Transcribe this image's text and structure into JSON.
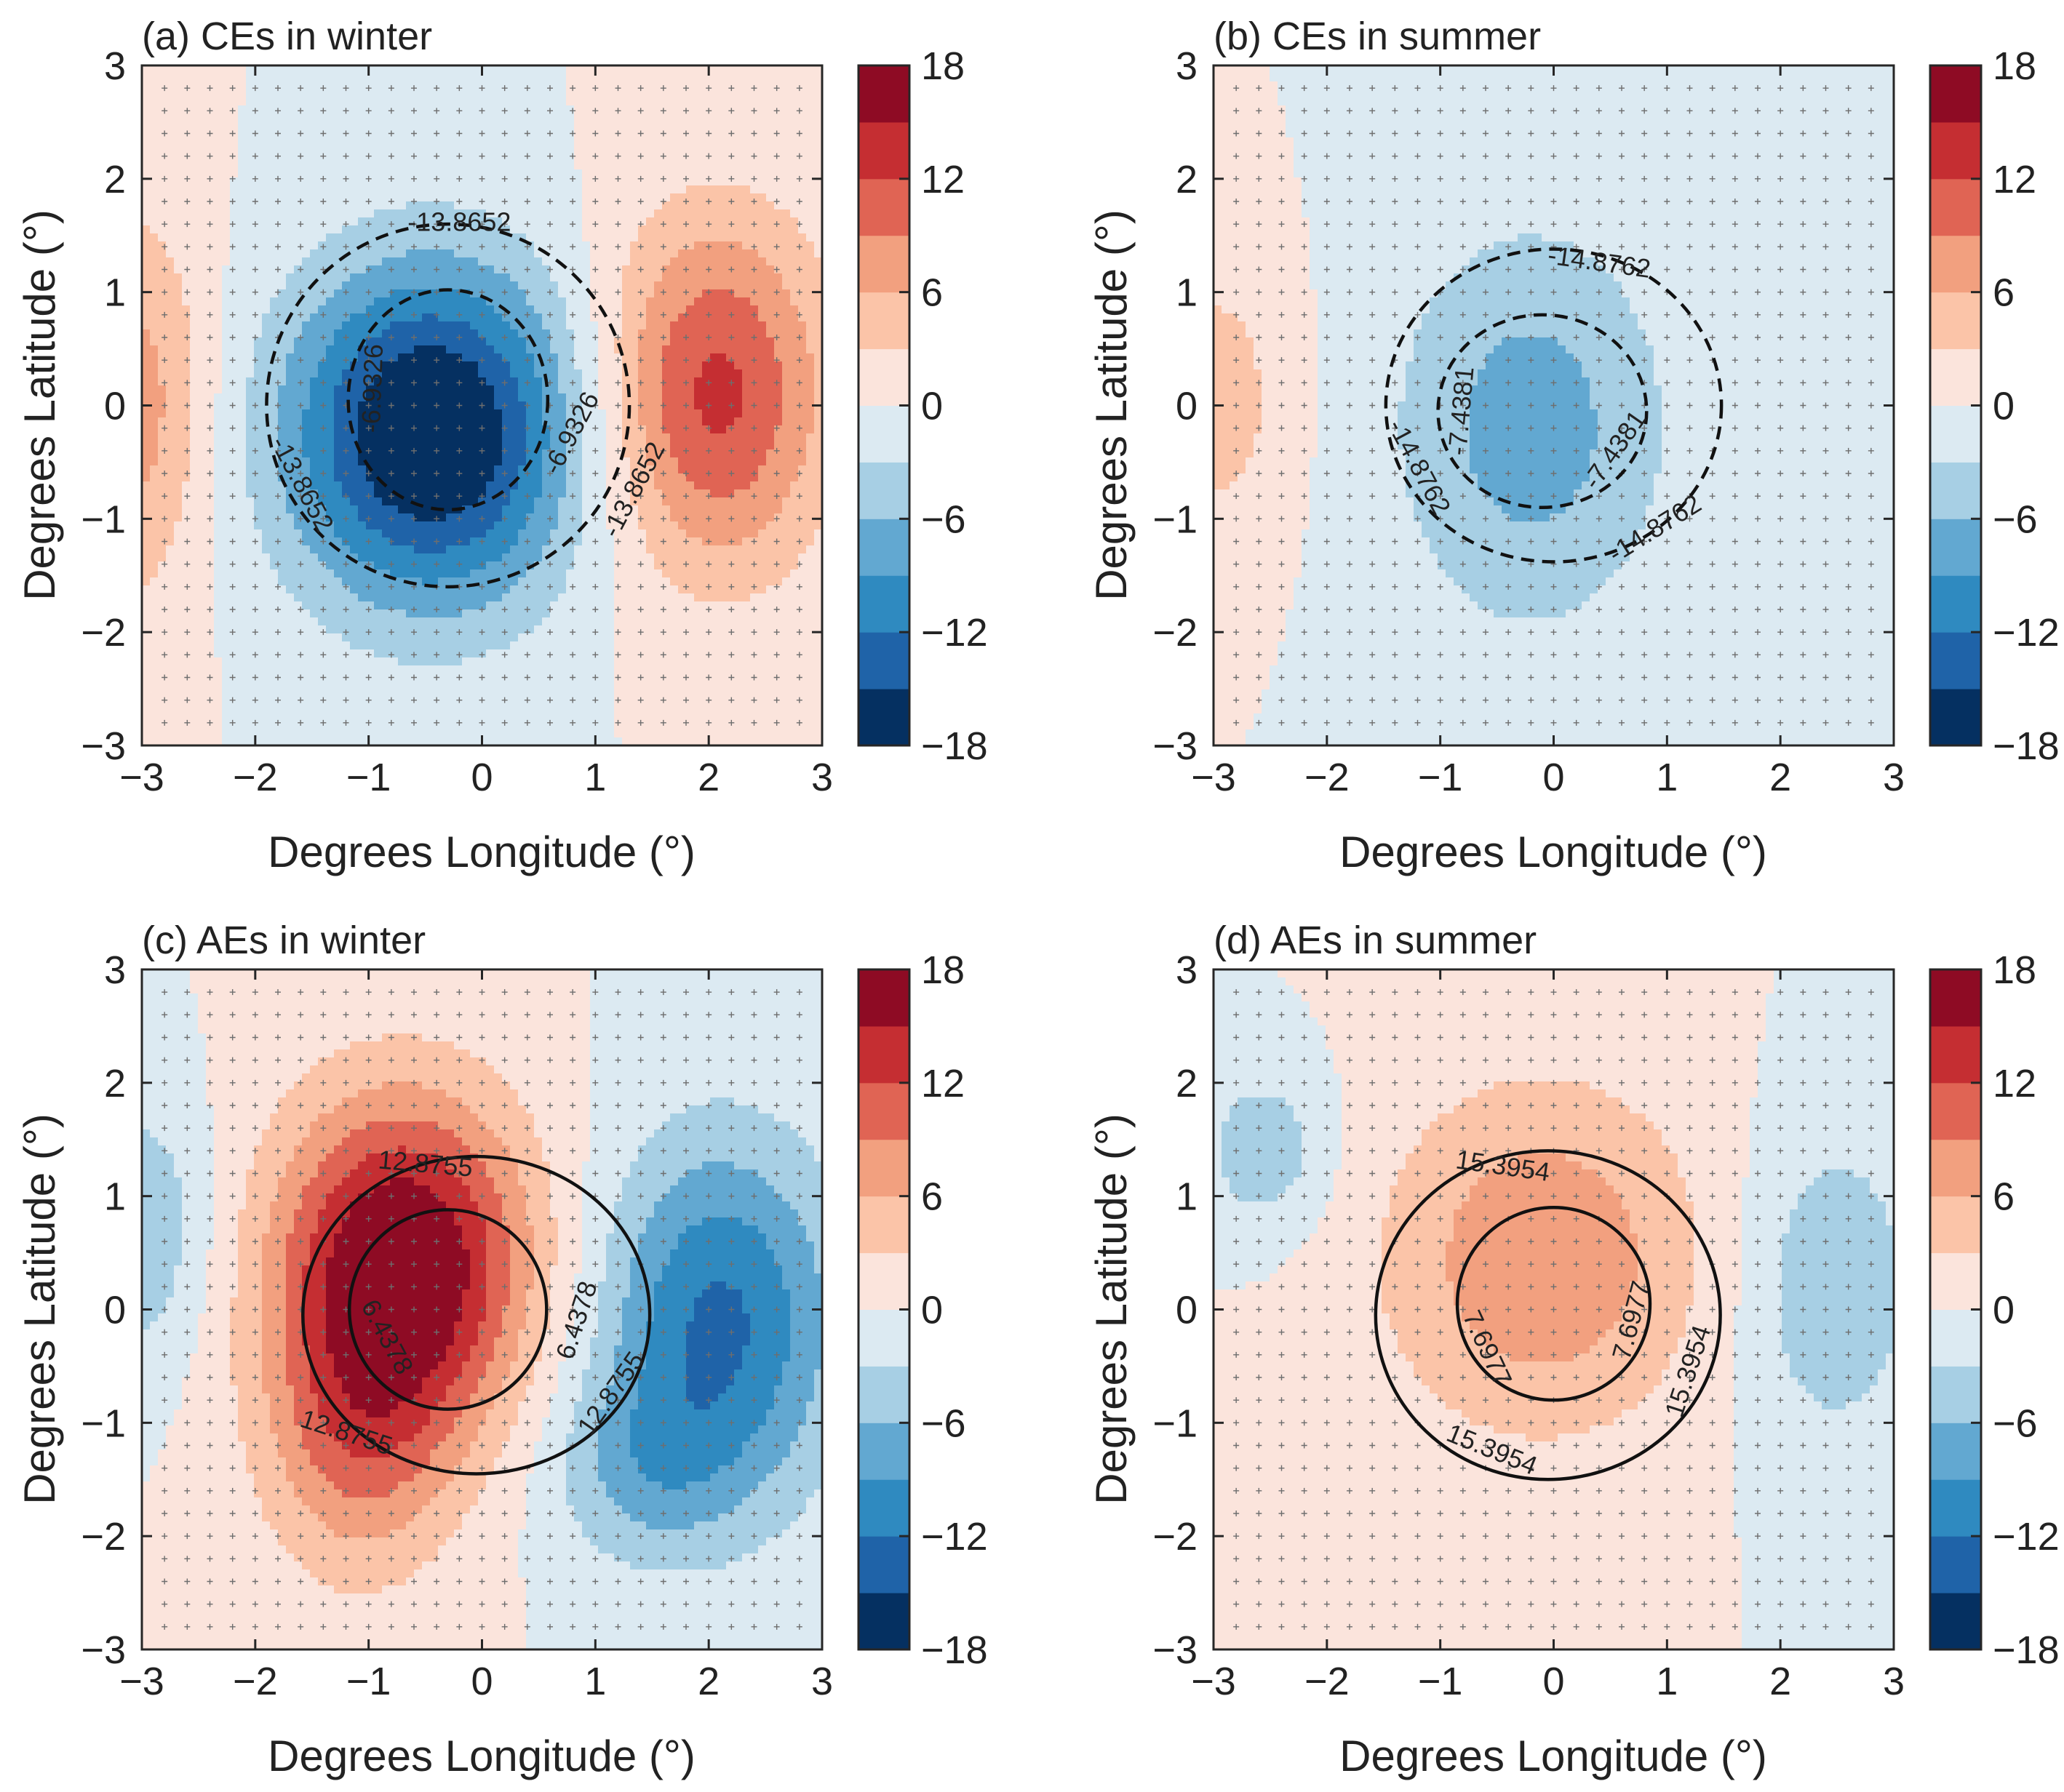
{
  "colorbar": {
    "levels": [
      -18,
      -15,
      -12,
      -9,
      -6,
      -3,
      0,
      3,
      6,
      9,
      12,
      15,
      18
    ],
    "colors": [
      "#053061",
      "#1f63a8",
      "#2f8ac0",
      "#62a8d1",
      "#a7cfe4",
      "#dceaf2",
      "#fbe4dc",
      "#fbc4a8",
      "#f2a07f",
      "#e06454",
      "#c52e32",
      "#8e0b24"
    ],
    "tick_labels": [
      "18",
      "12",
      "6",
      "0",
      "−6",
      "−12",
      "−18"
    ]
  },
  "chart_data": [
    {
      "type": "contourf",
      "title": "(a) CEs in winter",
      "xlabel": "Degrees Longitude (°)",
      "ylabel": "Degrees Latitude (°)",
      "xlim": [
        -3,
        3
      ],
      "ylim": [
        -3,
        3
      ],
      "x_ticks": [
        "−3",
        "−2",
        "−1",
        "0",
        "1",
        "2",
        "3"
      ],
      "y_ticks": [
        "3",
        "2",
        "1",
        "0",
        "−1",
        "−2",
        "−3"
      ],
      "field": [
        {
          "x": -0.45,
          "y": -0.25,
          "amp": -19.5,
          "sx": 0.9,
          "sy": 1.05
        },
        {
          "x": 2.05,
          "y": 0.1,
          "amp": 13.0,
          "sx": 0.7,
          "sy": 1.1
        },
        {
          "x": -3.05,
          "y": 0.0,
          "amp": 7.5,
          "sx": 0.45,
          "sy": 1.2
        }
      ],
      "contours": {
        "style": "dashed",
        "rings": [
          {
            "cx": -0.3,
            "cy": 0.05,
            "rx": 0.88,
            "ry": 0.97,
            "label": "-6.9326"
          },
          {
            "cx": -0.3,
            "cy": 0.0,
            "rx": 1.6,
            "ry": 1.6,
            "label": "-13.8652"
          }
        ],
        "labels": [
          {
            "text": "-13.8652",
            "x": -0.2,
            "y": 1.6,
            "angle": 0
          },
          {
            "text": "-6.9326",
            "x": -0.95,
            "y": 0.15,
            "angle": -88
          },
          {
            "text": "-6.9326",
            "x": 0.8,
            "y": -0.25,
            "angle": -62
          },
          {
            "text": "-13.8652",
            "x": 1.35,
            "y": -0.75,
            "angle": -62
          },
          {
            "text": "-13.8652",
            "x": -1.6,
            "y": -0.7,
            "angle": 62
          }
        ]
      }
    },
    {
      "type": "contourf",
      "title": "(b) CEs in summer",
      "xlabel": "Degrees Longitude (°)",
      "ylabel": "Degrees Latitude (°)",
      "xlim": [
        -3,
        3
      ],
      "ylim": [
        -3,
        3
      ],
      "x_ticks": [
        "−3",
        "−2",
        "−1",
        "0",
        "1",
        "2",
        "3"
      ],
      "y_ticks": [
        "3",
        "2",
        "1",
        "0",
        "−1",
        "−2",
        "−3"
      ],
      "field": [
        {
          "x": -0.2,
          "y": -0.2,
          "amp": -7.5,
          "sx": 0.85,
          "sy": 1.25
        },
        {
          "x": -3.0,
          "y": 0.05,
          "amp": 4.8,
          "sx": 0.45,
          "sy": 0.85
        }
      ],
      "contours": {
        "style": "dashed",
        "rings": [
          {
            "cx": -0.1,
            "cy": -0.05,
            "rx": 0.92,
            "ry": 0.85,
            "label": "-7.4381"
          },
          {
            "cx": 0.0,
            "cy": 0.0,
            "rx": 1.48,
            "ry": 1.38,
            "label": "-14.8762"
          }
        ],
        "labels": [
          {
            "text": "-14.8762",
            "x": 0.4,
            "y": 1.25,
            "angle": 8
          },
          {
            "text": "-7.4381",
            "x": -0.8,
            "y": -0.05,
            "angle": -85
          },
          {
            "text": "-7.4381",
            "x": 0.55,
            "y": -0.4,
            "angle": -55
          },
          {
            "text": "-14.8762",
            "x": 0.9,
            "y": -1.1,
            "angle": -32
          },
          {
            "text": "-14.8762",
            "x": -1.2,
            "y": -0.55,
            "angle": 62
          }
        ]
      }
    },
    {
      "type": "contourf",
      "title": "(c) AEs in winter",
      "xlabel": "Degrees Longitude (°)",
      "ylabel": "Degrees Latitude (°)",
      "xlim": [
        -3,
        3
      ],
      "ylim": [
        -3,
        3
      ],
      "x_ticks": [
        "−3",
        "−2",
        "−1",
        "0",
        "1",
        "2",
        "3"
      ],
      "y_ticks": [
        "3",
        "2",
        "1",
        "0",
        "−1",
        "−2",
        "−3"
      ],
      "field": [
        {
          "x": -0.7,
          "y": 0.4,
          "amp": 19.0,
          "sx": 0.8,
          "sy": 1.05
        },
        {
          "x": -1.1,
          "y": -1.2,
          "amp": 7.5,
          "sx": 0.6,
          "sy": 0.9
        },
        {
          "x": 2.1,
          "y": -0.1,
          "amp": -12.5,
          "sx": 0.75,
          "sy": 1.15
        },
        {
          "x": 1.4,
          "y": -1.4,
          "amp": -5.0,
          "sx": 0.6,
          "sy": 0.6
        },
        {
          "x": -3.05,
          "y": 0.7,
          "amp": -6.0,
          "sx": 0.45,
          "sy": 0.8
        }
      ],
      "contours": {
        "style": "solid",
        "rings": [
          {
            "cx": -0.3,
            "cy": 0.0,
            "rx": 0.87,
            "ry": 0.88,
            "label": "6.4378"
          },
          {
            "cx": -0.05,
            "cy": -0.05,
            "rx": 1.53,
            "ry": 1.4,
            "label": "12.8755"
          }
        ],
        "labels": [
          {
            "text": "12.8755",
            "x": -0.5,
            "y": 1.27,
            "angle": 5
          },
          {
            "text": "6.4378",
            "x": -0.85,
            "y": -0.25,
            "angle": 62
          },
          {
            "text": "6.4378",
            "x": 0.85,
            "y": -0.1,
            "angle": -72
          },
          {
            "text": "12.8755",
            "x": 1.15,
            "y": -0.75,
            "angle": -55
          },
          {
            "text": "12.8755",
            "x": -1.2,
            "y": -1.1,
            "angle": 18
          }
        ]
      }
    },
    {
      "type": "contourf",
      "title": "(d) AEs in summer",
      "xlabel": "Degrees Longitude (°)",
      "ylabel": "Degrees Latitude (°)",
      "xlim": [
        -3,
        3
      ],
      "ylim": [
        -3,
        3
      ],
      "x_ticks": [
        "−3",
        "−2",
        "−1",
        "0",
        "1",
        "2",
        "3"
      ],
      "y_ticks": [
        "3",
        "2",
        "1",
        "0",
        "−1",
        "−2",
        "−3"
      ],
      "field": [
        {
          "x": -0.1,
          "y": 0.45,
          "amp": 8.5,
          "sx": 1.0,
          "sy": 1.1
        },
        {
          "x": 2.45,
          "y": 0.2,
          "amp": -5.6,
          "sx": 0.55,
          "sy": 1.0
        },
        {
          "x": -2.55,
          "y": 1.4,
          "amp": -5.2,
          "sx": 0.4,
          "sy": 0.5
        }
      ],
      "contours": {
        "style": "solid",
        "rings": [
          {
            "cx": 0.0,
            "cy": 0.05,
            "rx": 0.85,
            "ry": 0.85,
            "label": "7.6977"
          },
          {
            "cx": -0.05,
            "cy": -0.05,
            "rx": 1.52,
            "ry": 1.45,
            "label": "15.3954"
          }
        ],
        "labels": [
          {
            "text": "15.3954",
            "x": -0.45,
            "y": 1.25,
            "angle": 8
          },
          {
            "text": "7.6977",
            "x": -0.6,
            "y": -0.35,
            "angle": 65
          },
          {
            "text": "7.6977",
            "x": 0.7,
            "y": -0.1,
            "angle": -75
          },
          {
            "text": "15.3954",
            "x": 1.2,
            "y": -0.55,
            "angle": -72
          },
          {
            "text": "15.3954",
            "x": -0.55,
            "y": -1.25,
            "angle": 22
          }
        ]
      }
    }
  ]
}
